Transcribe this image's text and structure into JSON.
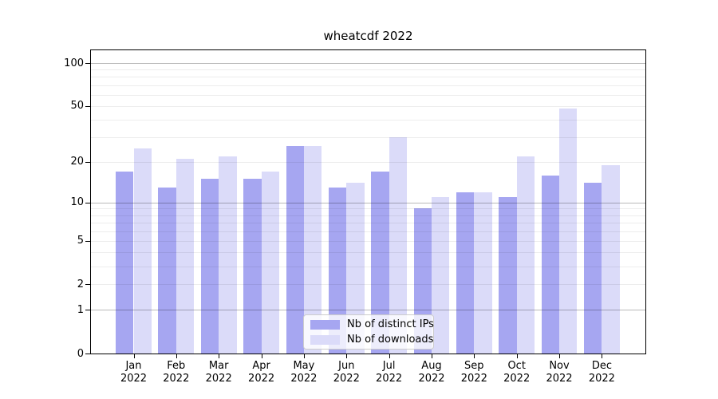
{
  "figure": {
    "title": "wheatcdf 2022"
  },
  "chart_data": {
    "type": "bar",
    "title": "wheatcdf 2022",
    "yscale": "log1p",
    "grid": true,
    "legend_position": "lower center",
    "ylim": [
      0,
      124
    ],
    "yticks": [
      0,
      1,
      2,
      5,
      10,
      20,
      50,
      100
    ],
    "major_gridlines": [
      1,
      10,
      100
    ],
    "minor_gridlines": [
      2,
      3,
      4,
      5,
      6,
      7,
      8,
      9,
      20,
      30,
      40,
      50,
      60,
      70,
      80,
      90
    ],
    "categories": [
      "Jan 2022",
      "Feb 2022",
      "Mar 2022",
      "Apr 2022",
      "May 2022",
      "Jun 2022",
      "Jul 2022",
      "Aug 2022",
      "Sep 2022",
      "Oct 2022",
      "Nov 2022",
      "Dec 2022"
    ],
    "series": [
      {
        "name": "Nb of distinct IPs",
        "color": "#a6a6f1",
        "values": [
          17,
          13,
          15,
          15,
          26,
          13,
          17,
          9,
          12,
          11,
          16,
          14
        ]
      },
      {
        "name": "Nb of downloads",
        "color": "#dbdbf9",
        "values": [
          25,
          21,
          22,
          17,
          26,
          14,
          30,
          11,
          12,
          22,
          48,
          19
        ]
      }
    ]
  }
}
